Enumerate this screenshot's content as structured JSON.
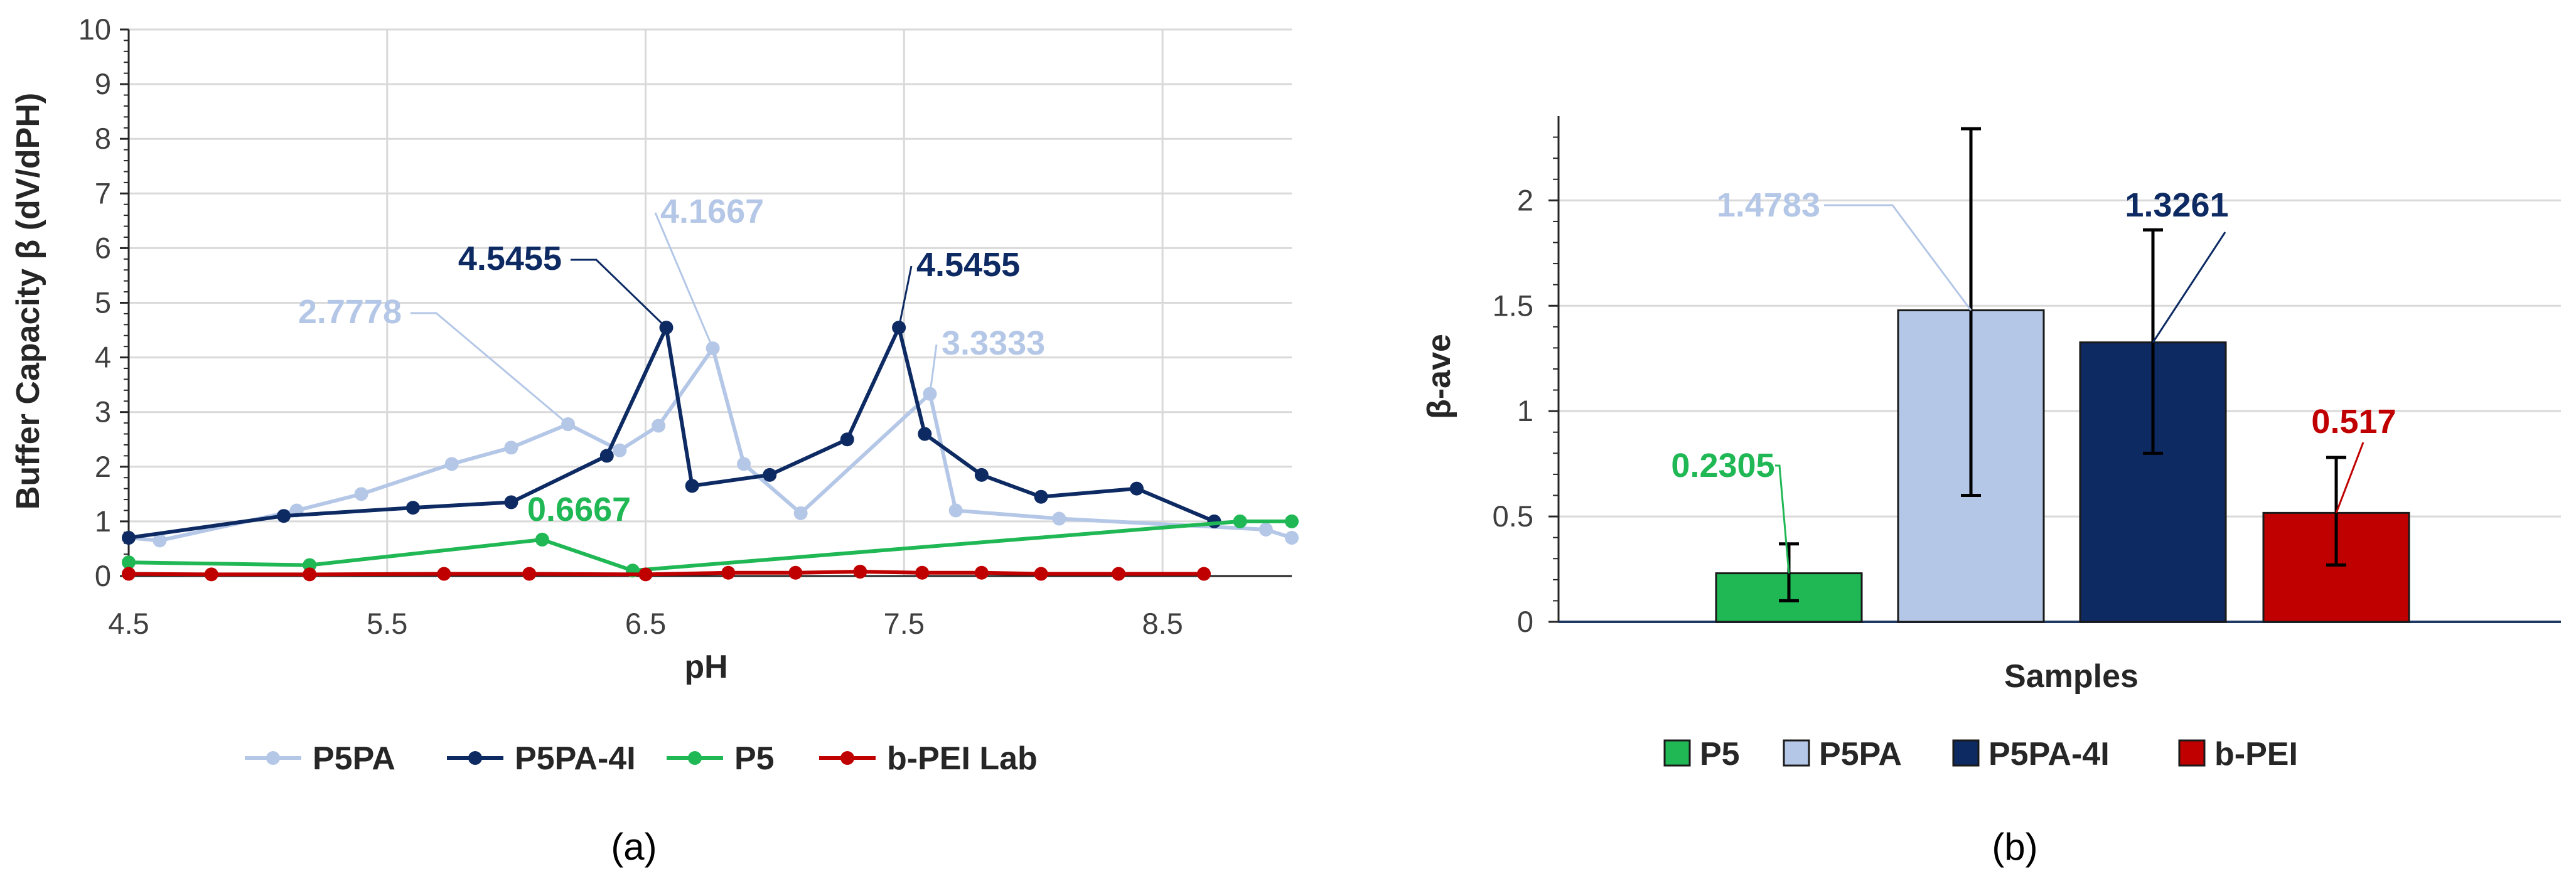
{
  "colors": {
    "P5PA": "#b4c7e7",
    "P5PA-4I": "#0d2a63",
    "P5": "#20b755",
    "b-PEI": "#c00000"
  },
  "chart_data": [
    {
      "type": "line",
      "panel": "(a)",
      "xlabel": "pH",
      "ylabel": "Buffer Capacity β (dV/dPH)",
      "xlim": [
        4.5,
        9.0
      ],
      "ylim": [
        0,
        10
      ],
      "x_ticks": [
        "4.5",
        "5.5",
        "6.5",
        "7.5",
        "8.5"
      ],
      "y_ticks": [
        "0",
        "1",
        "2",
        "3",
        "4",
        "5",
        "6",
        "7",
        "8",
        "9",
        "10"
      ],
      "grid": true,
      "legend_position": "bottom",
      "series": [
        {
          "name": "P5PA",
          "color": "#b4c7e7",
          "x": [
            4.5,
            4.62,
            5.15,
            5.4,
            5.75,
            5.98,
            6.2,
            6.4,
            6.55,
            6.76,
            6.88,
            7.1,
            7.6,
            7.7,
            8.1,
            8.9,
            9.0
          ],
          "y": [
            0.7,
            0.65,
            1.2,
            1.5,
            2.05,
            2.35,
            2.7778,
            2.3,
            2.75,
            4.1667,
            2.05,
            1.15,
            3.3333,
            1.2,
            1.05,
            0.85,
            0.7
          ],
          "labels": [
            {
              "x": 6.2,
              "y": 2.7778,
              "text": "2.7778"
            },
            {
              "x": 6.76,
              "y": 4.1667,
              "text": "4.1667"
            },
            {
              "x": 7.6,
              "y": 3.3333,
              "text": "3.3333"
            }
          ]
        },
        {
          "name": "P5PA-4I",
          "color": "#0d2a63",
          "x": [
            4.5,
            5.1,
            5.6,
            5.98,
            6.35,
            6.58,
            6.68,
            6.98,
            7.28,
            7.48,
            7.58,
            7.8,
            8.03,
            8.4,
            8.7
          ],
          "y": [
            0.7,
            1.1,
            1.25,
            1.35,
            2.2,
            4.5455,
            1.65,
            1.85,
            2.5,
            4.5455,
            2.6,
            1.85,
            1.45,
            1.6,
            1.0
          ],
          "labels": [
            {
              "x": 6.58,
              "y": 4.5455,
              "text": "4.5455"
            },
            {
              "x": 7.48,
              "y": 4.5455,
              "text": "4.5455"
            }
          ]
        },
        {
          "name": "P5",
          "color": "#20b755",
          "x": [
            4.5,
            5.2,
            6.1,
            6.45,
            8.8,
            9.0
          ],
          "y": [
            0.25,
            0.2,
            0.6667,
            0.1,
            1.0,
            1.0
          ],
          "labels": [
            {
              "x": 6.1,
              "y": 0.6667,
              "text": "0.6667"
            }
          ]
        },
        {
          "name": "b-PEI Lab",
          "color": "#c00000",
          "x": [
            4.5,
            4.82,
            5.2,
            5.72,
            6.05,
            6.5,
            6.82,
            7.08,
            7.33,
            7.57,
            7.8,
            8.03,
            8.33,
            8.66
          ],
          "y": [
            0.04,
            0.03,
            0.03,
            0.04,
            0.04,
            0.03,
            0.06,
            0.06,
            0.08,
            0.06,
            0.06,
            0.04,
            0.04,
            0.04
          ],
          "labels": []
        }
      ]
    },
    {
      "type": "bar",
      "panel": "(b)",
      "xlabel": "Samples",
      "ylabel": "β-ave",
      "ylim": [
        0,
        2.4
      ],
      "y_ticks": [
        "0",
        "0.5",
        "1",
        "1.5",
        "2"
      ],
      "grid": true,
      "legend_position": "bottom",
      "categories": [
        "P5",
        "P5PA",
        "P5PA-4I",
        "b-PEI"
      ],
      "values": [
        0.2305,
        1.4783,
        1.3261,
        0.517
      ],
      "errors_low": [
        0.1,
        0.6,
        0.8,
        0.27
      ],
      "errors_high": [
        0.37,
        2.34,
        1.86,
        0.78
      ],
      "value_labels": [
        "0.2305",
        "1.4783",
        "1.3261",
        "0.517"
      ],
      "colors": [
        "#20b755",
        "#b4c7e7",
        "#0d2a63",
        "#c00000"
      ]
    }
  ]
}
